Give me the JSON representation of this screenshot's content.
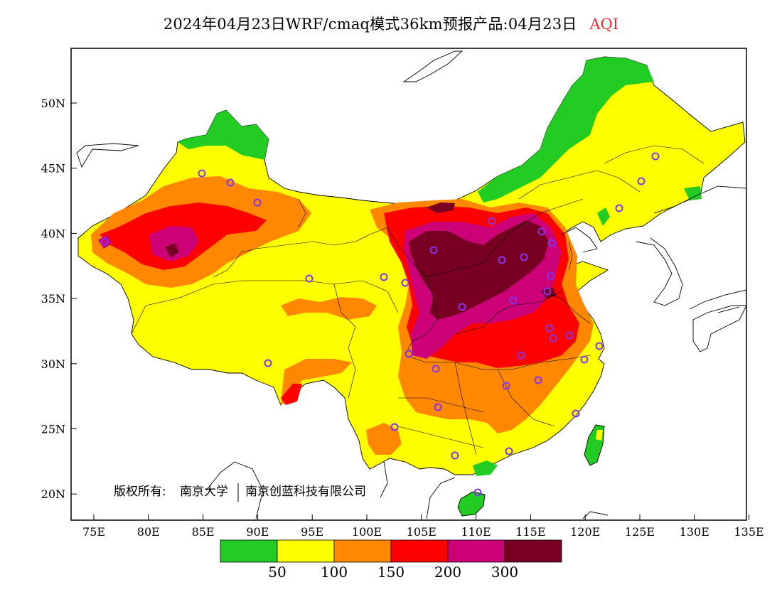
{
  "title": {
    "product": "2024年04月23日WRF/cmaq模式36km预报产品:04月23日",
    "variable": "AQI"
  },
  "axes": {
    "lon_labels": [
      "75E",
      "80E",
      "85E",
      "90E",
      "95E",
      "100E",
      "105E",
      "110E",
      "115E",
      "120E",
      "125E",
      "130E",
      "135E"
    ],
    "lat_labels": [
      "50N",
      "45N",
      "40N",
      "35N",
      "30N",
      "25N",
      "20N"
    ],
    "lon_range": [
      73,
      135
    ],
    "lat_range": [
      18,
      54
    ]
  },
  "colorbar": {
    "colors": [
      "#22cc22",
      "#ffff00",
      "#ff8800",
      "#ff0000",
      "#cc0077",
      "#770022"
    ],
    "labels": [
      "50",
      "100",
      "150",
      "200",
      "300"
    ]
  },
  "copyright": {
    "owner_label": "版权所有:",
    "org1": "南京大学",
    "org2": "南京创蓝科技有限公司"
  }
}
